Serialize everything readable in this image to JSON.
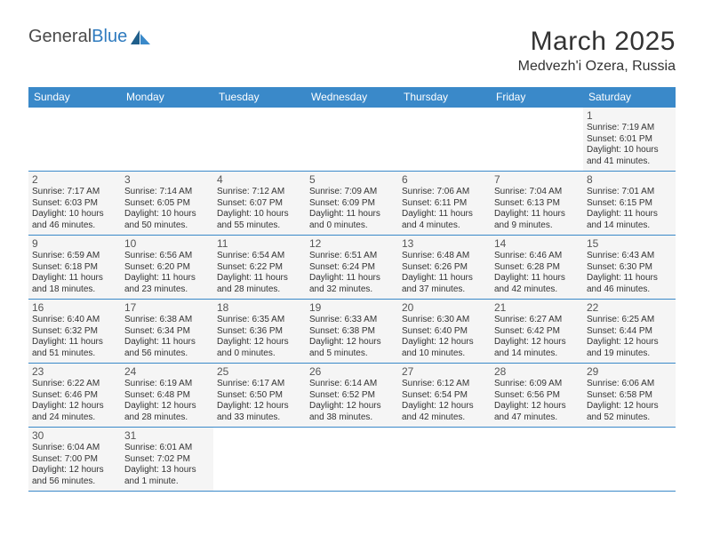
{
  "brand": {
    "part1": "General",
    "part2": "Blue"
  },
  "title": "March 2025",
  "location": "Medvezh'i Ozera, Russia",
  "colors": {
    "header_bg": "#3a89c9",
    "header_text": "#ffffff",
    "cell_bg": "#f5f5f5",
    "border": "#3a89c9",
    "logo_gray": "#4a4a4a",
    "logo_blue": "#2f7bbf"
  },
  "daysOfWeek": [
    "Sunday",
    "Monday",
    "Tuesday",
    "Wednesday",
    "Thursday",
    "Friday",
    "Saturday"
  ],
  "weeks": [
    [
      null,
      null,
      null,
      null,
      null,
      null,
      {
        "n": "1",
        "sr": "7:19 AM",
        "ss": "6:01 PM",
        "dl": "10 hours and 41 minutes."
      }
    ],
    [
      {
        "n": "2",
        "sr": "7:17 AM",
        "ss": "6:03 PM",
        "dl": "10 hours and 46 minutes."
      },
      {
        "n": "3",
        "sr": "7:14 AM",
        "ss": "6:05 PM",
        "dl": "10 hours and 50 minutes."
      },
      {
        "n": "4",
        "sr": "7:12 AM",
        "ss": "6:07 PM",
        "dl": "10 hours and 55 minutes."
      },
      {
        "n": "5",
        "sr": "7:09 AM",
        "ss": "6:09 PM",
        "dl": "11 hours and 0 minutes."
      },
      {
        "n": "6",
        "sr": "7:06 AM",
        "ss": "6:11 PM",
        "dl": "11 hours and 4 minutes."
      },
      {
        "n": "7",
        "sr": "7:04 AM",
        "ss": "6:13 PM",
        "dl": "11 hours and 9 minutes."
      },
      {
        "n": "8",
        "sr": "7:01 AM",
        "ss": "6:15 PM",
        "dl": "11 hours and 14 minutes."
      }
    ],
    [
      {
        "n": "9",
        "sr": "6:59 AM",
        "ss": "6:18 PM",
        "dl": "11 hours and 18 minutes."
      },
      {
        "n": "10",
        "sr": "6:56 AM",
        "ss": "6:20 PM",
        "dl": "11 hours and 23 minutes."
      },
      {
        "n": "11",
        "sr": "6:54 AM",
        "ss": "6:22 PM",
        "dl": "11 hours and 28 minutes."
      },
      {
        "n": "12",
        "sr": "6:51 AM",
        "ss": "6:24 PM",
        "dl": "11 hours and 32 minutes."
      },
      {
        "n": "13",
        "sr": "6:48 AM",
        "ss": "6:26 PM",
        "dl": "11 hours and 37 minutes."
      },
      {
        "n": "14",
        "sr": "6:46 AM",
        "ss": "6:28 PM",
        "dl": "11 hours and 42 minutes."
      },
      {
        "n": "15",
        "sr": "6:43 AM",
        "ss": "6:30 PM",
        "dl": "11 hours and 46 minutes."
      }
    ],
    [
      {
        "n": "16",
        "sr": "6:40 AM",
        "ss": "6:32 PM",
        "dl": "11 hours and 51 minutes."
      },
      {
        "n": "17",
        "sr": "6:38 AM",
        "ss": "6:34 PM",
        "dl": "11 hours and 56 minutes."
      },
      {
        "n": "18",
        "sr": "6:35 AM",
        "ss": "6:36 PM",
        "dl": "12 hours and 0 minutes."
      },
      {
        "n": "19",
        "sr": "6:33 AM",
        "ss": "6:38 PM",
        "dl": "12 hours and 5 minutes."
      },
      {
        "n": "20",
        "sr": "6:30 AM",
        "ss": "6:40 PM",
        "dl": "12 hours and 10 minutes."
      },
      {
        "n": "21",
        "sr": "6:27 AM",
        "ss": "6:42 PM",
        "dl": "12 hours and 14 minutes."
      },
      {
        "n": "22",
        "sr": "6:25 AM",
        "ss": "6:44 PM",
        "dl": "12 hours and 19 minutes."
      }
    ],
    [
      {
        "n": "23",
        "sr": "6:22 AM",
        "ss": "6:46 PM",
        "dl": "12 hours and 24 minutes."
      },
      {
        "n": "24",
        "sr": "6:19 AM",
        "ss": "6:48 PM",
        "dl": "12 hours and 28 minutes."
      },
      {
        "n": "25",
        "sr": "6:17 AM",
        "ss": "6:50 PM",
        "dl": "12 hours and 33 minutes."
      },
      {
        "n": "26",
        "sr": "6:14 AM",
        "ss": "6:52 PM",
        "dl": "12 hours and 38 minutes."
      },
      {
        "n": "27",
        "sr": "6:12 AM",
        "ss": "6:54 PM",
        "dl": "12 hours and 42 minutes."
      },
      {
        "n": "28",
        "sr": "6:09 AM",
        "ss": "6:56 PM",
        "dl": "12 hours and 47 minutes."
      },
      {
        "n": "29",
        "sr": "6:06 AM",
        "ss": "6:58 PM",
        "dl": "12 hours and 52 minutes."
      }
    ],
    [
      {
        "n": "30",
        "sr": "6:04 AM",
        "ss": "7:00 PM",
        "dl": "12 hours and 56 minutes."
      },
      {
        "n": "31",
        "sr": "6:01 AM",
        "ss": "7:02 PM",
        "dl": "13 hours and 1 minute."
      },
      null,
      null,
      null,
      null,
      null
    ]
  ],
  "labels": {
    "sunrise": "Sunrise:",
    "sunset": "Sunset:",
    "daylight": "Daylight:"
  }
}
